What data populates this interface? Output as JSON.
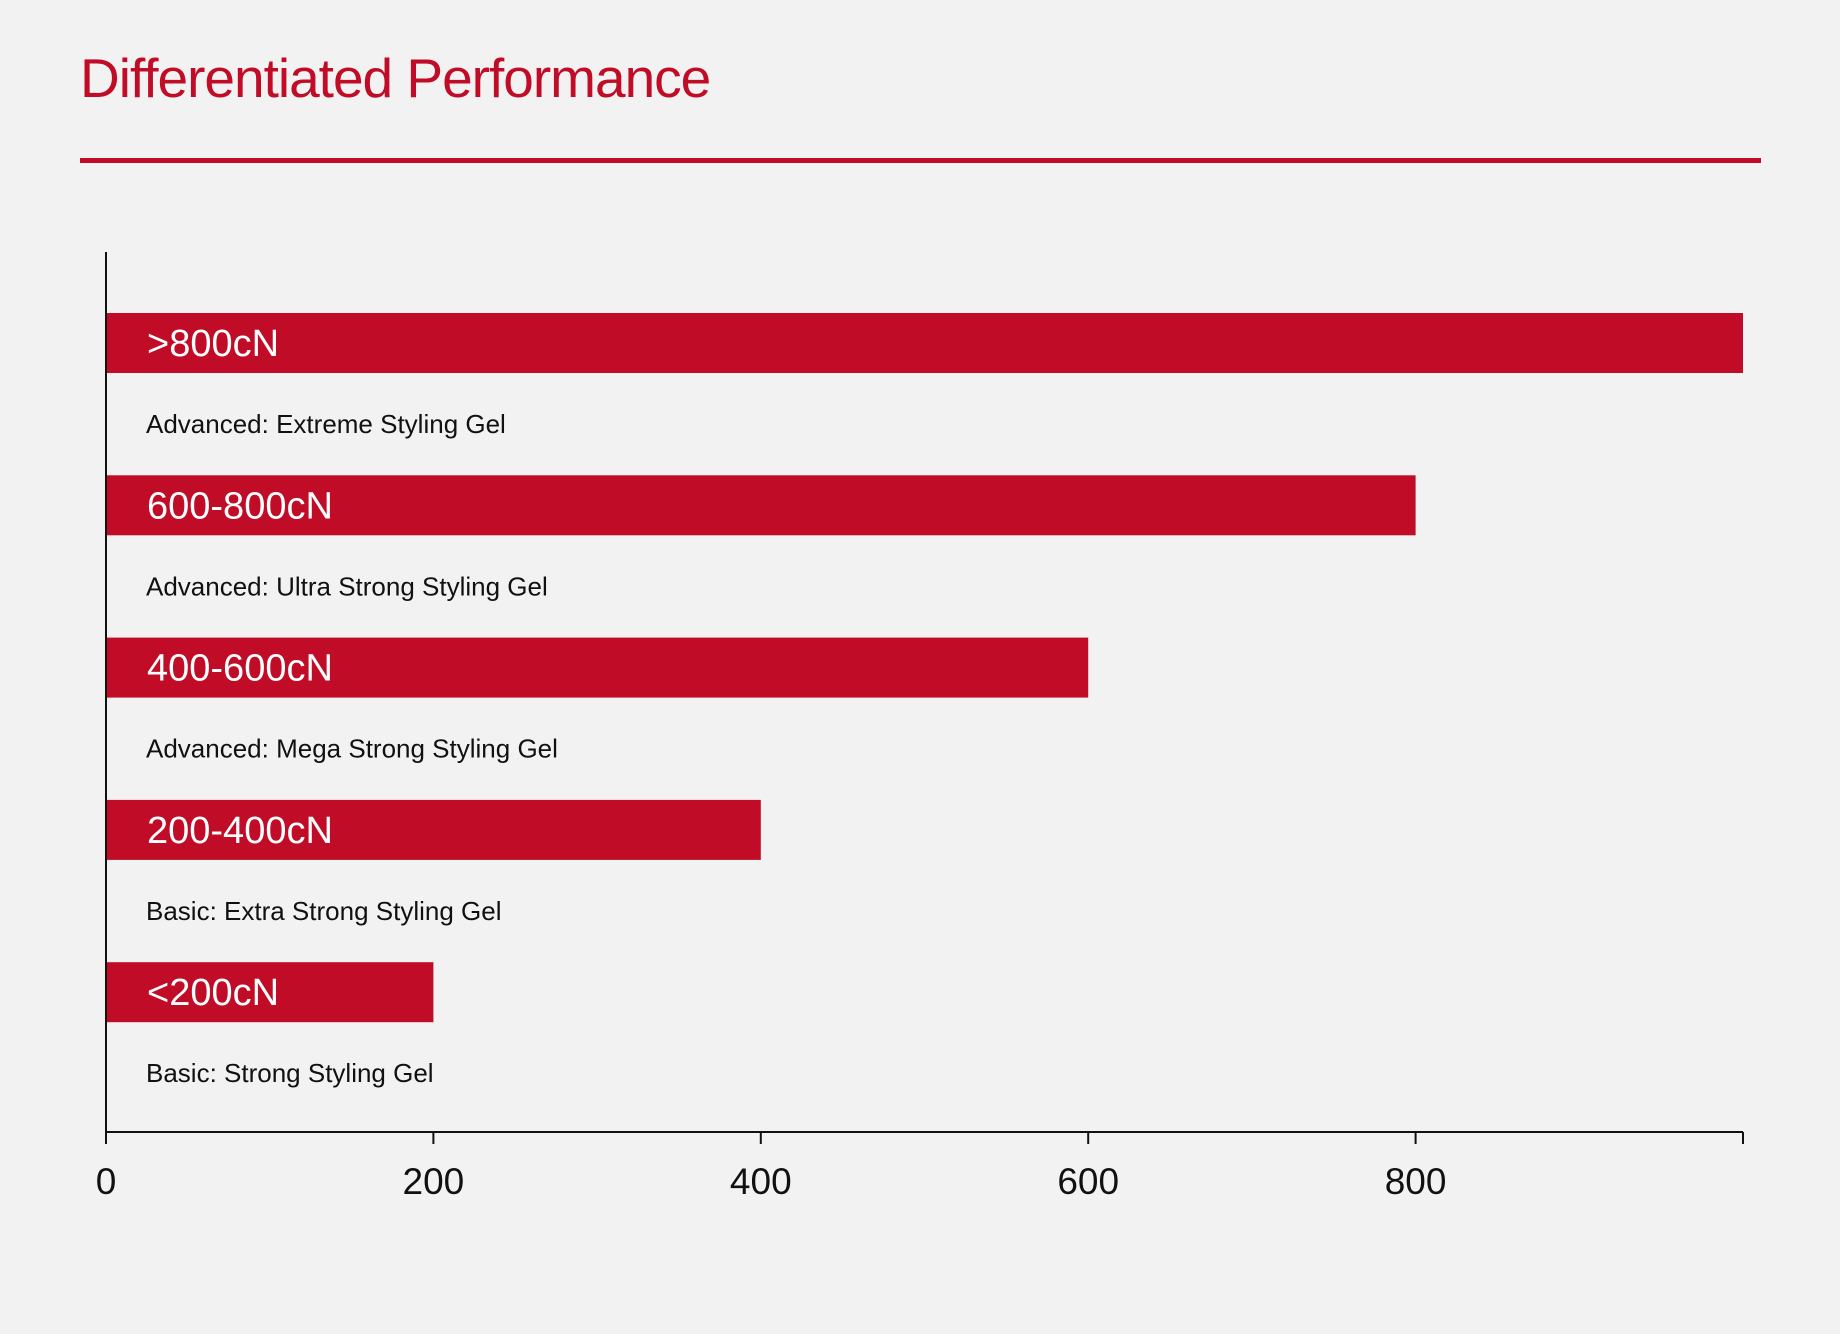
{
  "title": "Differentiated Performance",
  "colors": {
    "accent": "#c00c27",
    "text": "#111111",
    "axis": "#111111",
    "background": "#f2f2f2",
    "bar_text": "#ffffff"
  },
  "chart_data": {
    "type": "bar",
    "orientation": "horizontal",
    "title": "Differentiated Performance",
    "xlabel": "",
    "ylabel": "",
    "xlim": [
      0,
      1000
    ],
    "x_ticks": [
      0,
      200,
      400,
      600,
      800
    ],
    "grid": false,
    "legend": "none",
    "bars": [
      {
        "label": ">800cN",
        "category": "Advanced: Extreme Styling Gel",
        "value": 1000
      },
      {
        "label": "600-800cN",
        "category": "Advanced: Ultra Strong Styling Gel",
        "value": 800
      },
      {
        "label": "400-600cN",
        "category": "Advanced: Mega Strong Styling Gel",
        "value": 600
      },
      {
        "label": "200-400cN",
        "category": "Basic: Extra Strong Styling Gel",
        "value": 400
      },
      {
        "label": "<200cN",
        "category": "Basic: Strong Styling Gel",
        "value": 200
      }
    ]
  }
}
